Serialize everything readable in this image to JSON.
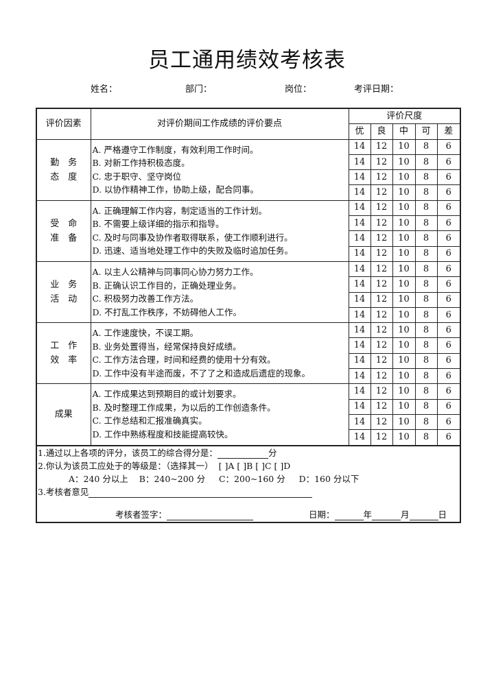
{
  "title": "员工通用绩效考核表",
  "meta": {
    "name_label": "姓名：",
    "dept_label": "部门：",
    "position_label": "岗位：",
    "date_label": "考评日期："
  },
  "table": {
    "header_factor": "评价因素",
    "header_content": "对评价期间工作成绩的评价要点",
    "header_scale": "评价尺度",
    "scale_levels": [
      "优",
      "良",
      "中",
      "可",
      "差"
    ],
    "scores": [
      "14",
      "12",
      "10",
      "8",
      "6"
    ],
    "categories": [
      {
        "factor": [
          "勤　务",
          "态　度"
        ],
        "items": [
          "A. 严格遵守工作制度，有效利用工作时间。",
          "B. 对新工作持积极态度。",
          "C. 忠于职守、坚守岗位",
          "D. 以协作精神工作，协助上级，配合同事。"
        ]
      },
      {
        "factor": [
          "受　命",
          "准　备"
        ],
        "items": [
          "A. 正确理解工作内容，制定适当的工作计划。",
          "B. 不需要上级详细的指示和指导。",
          "C. 及时与同事及协作者取得联系，使工作顺利进行。",
          "D. 迅速、适当地处理工作中的失败及临时追加任务。"
        ]
      },
      {
        "factor": [
          "业　务",
          "活　动"
        ],
        "items": [
          "A. 以主人公精神与同事同心协力努力工作。",
          "B. 正确认识工作目的，正确处理业务。",
          "C. 积极努力改善工作方法。",
          "D. 不打乱工作秩序，不妨碍他人工作。"
        ]
      },
      {
        "factor": [
          "工　作",
          "效　率"
        ],
        "items": [
          "A. 工作速度快，不误工期。",
          "B. 业务处置得当，经常保持良好成绩。",
          "C. 工作方法合理，时间和经费的使用十分有效。",
          "D. 工作中没有半途而废，不了了之和造成后遗症的现象。"
        ]
      },
      {
        "factor": [
          "成果"
        ],
        "items": [
          "A. 工作成果达到预期目的或计划要求。",
          "B. 及时整理工作成果，为以后的工作创造条件。",
          "C. 工作总结和汇报准确真实。",
          "D. 工作中熟练程度和技能提高较快。"
        ]
      }
    ]
  },
  "footer": {
    "q1": "1.通过以上各项的评分，该员工的综合得分是：",
    "q1_unit": "分",
    "q2": "2.你认为该员工应处于的等级是：（选择其一）  [ ]A [ ]B [ ]C [ ]D",
    "grades": "A：240 分以上    B：240~200 分     C：200~160 分     D：160 分以下",
    "q3": "3.考核者意见",
    "signature_label": "考核者签字：",
    "date_label": "日期：",
    "year": "年",
    "month": "月",
    "day": "日"
  }
}
